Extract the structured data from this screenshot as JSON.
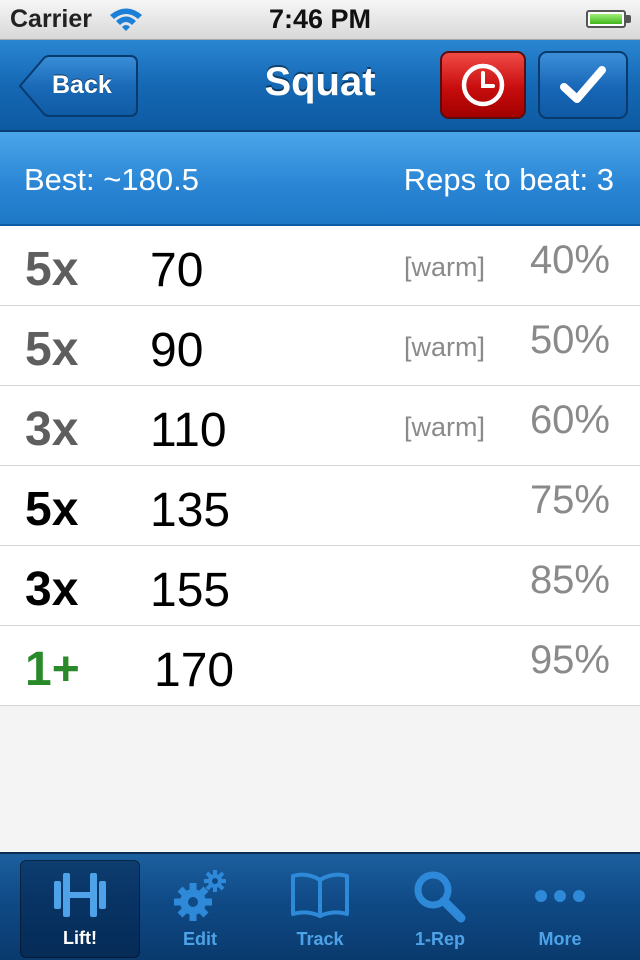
{
  "status_bar": {
    "carrier": "Carrier",
    "time": "7:46 PM"
  },
  "nav": {
    "back_label": "Back",
    "title": "Squat",
    "timer_icon": "clock-icon",
    "done_icon": "checkmark-icon"
  },
  "info": {
    "best": "Best: ~180.5",
    "reps_to_beat": "Reps to beat: 3"
  },
  "sets": [
    {
      "reps": "5x",
      "weight": "70",
      "note": "[warm]",
      "percent": "40%"
    },
    {
      "reps": "5x",
      "weight": "90",
      "note": "[warm]",
      "percent": "50%"
    },
    {
      "reps": "3x",
      "weight": "110",
      "note": "[warm]",
      "percent": "60%"
    },
    {
      "reps": "5x",
      "weight": "135",
      "note": "",
      "percent": "75%"
    },
    {
      "reps": "3x",
      "weight": "155",
      "note": "",
      "percent": "85%"
    },
    {
      "reps": "1+",
      "weight": "170",
      "note": "",
      "percent": "95%"
    }
  ],
  "tabs": [
    {
      "label": "Lift!",
      "icon": "barbell-icon"
    },
    {
      "label": "Edit",
      "icon": "gears-icon"
    },
    {
      "label": "Track",
      "icon": "book-icon"
    },
    {
      "label": "1-Rep",
      "icon": "magnifier-icon"
    },
    {
      "label": "More",
      "icon": "more-dots-icon"
    }
  ],
  "colors": {
    "nav_blue": "#1568b4",
    "info_blue": "#2985d4",
    "timer_red": "#c70d0d",
    "amrap_green": "#2a8a2a",
    "tab_active": "#4ea3e8"
  }
}
